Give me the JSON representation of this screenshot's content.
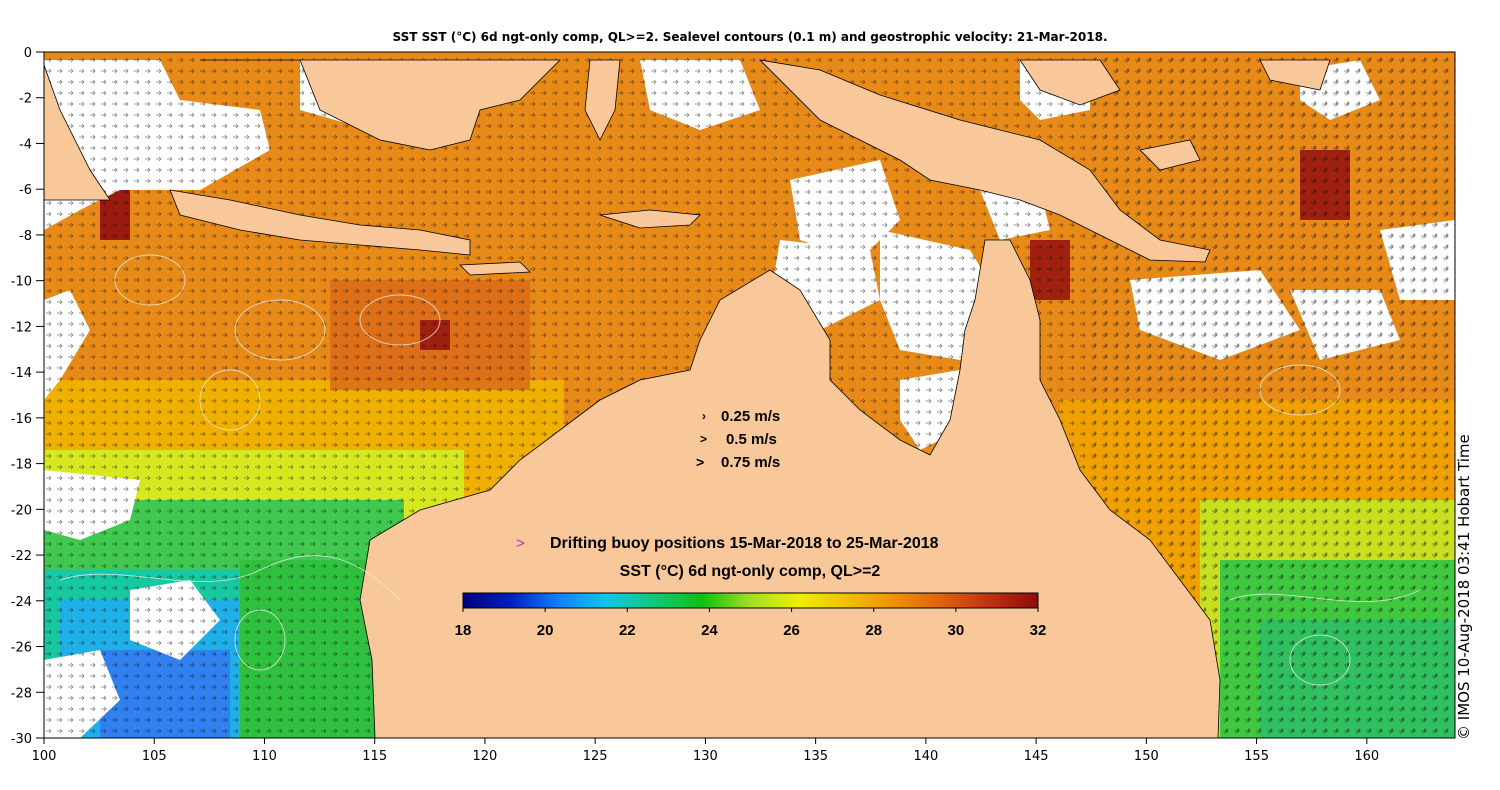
{
  "title": "SST SST (°C) 6d ngt-only comp, QL>=2. Sealevel contours (0.1 m) and geostrophic velocity: 21-Mar-2018.",
  "axes": {
    "x_ticks": [
      "100",
      "105",
      "110",
      "115",
      "120",
      "125",
      "130",
      "135",
      "140",
      "145",
      "150",
      "155",
      "160"
    ],
    "y_ticks": [
      "0",
      "-2",
      "-4",
      "-6",
      "-8",
      "-10",
      "-12",
      "-14",
      "-16",
      "-18",
      "-20",
      "-22",
      "-24",
      "-26",
      "-28",
      "-30"
    ],
    "lon_range": [
      100,
      164
    ],
    "lat_range": [
      -30,
      0
    ]
  },
  "velocity_scale": [
    {
      "label": "0.25 m/s",
      "glyph": "›"
    },
    {
      "label": "0.5 m/s",
      "glyph": ">"
    },
    {
      "label": "0.75 m/s",
      "glyph": ">"
    }
  ],
  "buoy_legend": {
    "marker": ">",
    "label": "Drifting buoy positions 15-Mar-2018 to 25-Mar-2018",
    "color": "#d020d0"
  },
  "colorbar": {
    "title": "SST (°C) 6d ngt-only comp, QL>=2",
    "ticks": [
      "18",
      "20",
      "22",
      "24",
      "26",
      "28",
      "30",
      "32"
    ],
    "range": [
      18,
      32
    ],
    "colors": [
      "#00007f",
      "#0020c0",
      "#1080ff",
      "#10c8e8",
      "#10c878",
      "#10c010",
      "#a0e020",
      "#f0f000",
      "#f0c000",
      "#f09000",
      "#e06010",
      "#c03010",
      "#8c0a0a"
    ]
  },
  "colors": {
    "land": "#f9c89a",
    "cloud": "#ffffff",
    "coast": "#000000",
    "contour": "#e6f0e6",
    "rivers": "#40d8d8"
  },
  "credit": "© IMOS 10-Aug-2018 03:41 Hobart Time"
}
